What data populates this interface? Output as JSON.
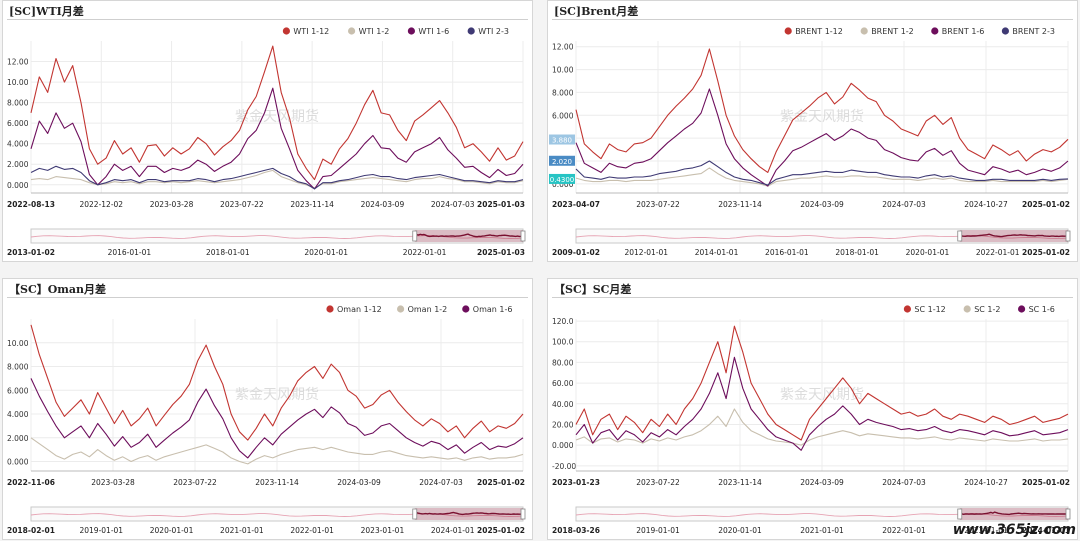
{
  "watermark_site": "www.365jz.com",
  "chart_data": [
    {
      "type": "line",
      "title": "[SC]WTI月差",
      "overlay": "紫金天风期货",
      "ylim": [
        -0.8,
        14
      ],
      "yticks": [
        "0.000",
        "2.000",
        "4.000",
        "6.000",
        "8.000",
        "10.00",
        "12.00"
      ],
      "x_start": "2022-08-13",
      "x_end": "2025-01-03",
      "xticks": [
        "2022-08-13",
        "2022-12-02",
        "2023-03-28",
        "2023-07-22",
        "2023-11-14",
        "2024-03-09",
        "2024-07-03",
        "2025-01-03"
      ],
      "navigator_ticks": [
        "2013-01-02",
        "2016-01-01",
        "2018-01-01",
        "2020-01-01",
        "2022-01-01",
        "2025-01-03"
      ],
      "series": [
        {
          "name": "WTI 1-12",
          "color": "#c23531",
          "values": [
            7.0,
            10.5,
            9.0,
            12.3,
            10.0,
            11.6,
            8.0,
            3.5,
            2.0,
            2.6,
            4.3,
            3.0,
            3.6,
            2.2,
            3.8,
            3.9,
            2.8,
            3.6,
            3.0,
            3.5,
            4.6,
            4.0,
            2.9,
            3.7,
            4.3,
            5.3,
            7.3,
            8.6,
            11.0,
            13.5,
            9.0,
            6.5,
            3.0,
            1.6,
            0.5,
            2.5,
            2.0,
            3.5,
            4.5,
            6.0,
            7.8,
            9.2,
            7.0,
            6.8,
            5.3,
            4.3,
            6.2,
            6.8,
            7.5,
            8.2,
            7.0,
            5.6,
            3.6,
            4.0,
            3.2,
            2.3,
            3.6,
            2.4,
            2.8,
            4.2
          ]
        },
        {
          "name": "WTI 1-2",
          "color": "#c8bfae",
          "values": [
            0.5,
            0.6,
            0.5,
            0.8,
            0.7,
            0.6,
            0.5,
            0.2,
            0.0,
            0.1,
            0.3,
            0.2,
            0.3,
            0.1,
            0.3,
            0.3,
            0.2,
            0.3,
            0.2,
            0.3,
            0.4,
            0.3,
            0.2,
            0.3,
            0.4,
            0.5,
            0.7,
            0.9,
            1.2,
            1.4,
            0.8,
            0.5,
            0.2,
            0.0,
            -0.3,
            0.1,
            0.1,
            0.3,
            0.4,
            0.5,
            0.6,
            0.7,
            0.6,
            0.5,
            0.4,
            0.3,
            0.5,
            0.6,
            0.6,
            0.8,
            0.6,
            0.5,
            0.3,
            0.3,
            0.2,
            0.1,
            0.3,
            0.2,
            0.2,
            0.4
          ]
        },
        {
          "name": "WTI 1-6",
          "color": "#6d0e5c",
          "values": [
            3.5,
            6.2,
            5.0,
            7.0,
            5.5,
            6.0,
            4.2,
            1.0,
            0.0,
            0.8,
            2.0,
            1.4,
            1.8,
            0.8,
            1.8,
            1.8,
            1.2,
            1.6,
            1.4,
            1.7,
            2.4,
            2.0,
            1.3,
            1.8,
            2.2,
            3.0,
            4.5,
            5.3,
            7.0,
            9.4,
            5.5,
            3.5,
            1.4,
            0.4,
            -0.4,
            0.8,
            0.9,
            1.6,
            2.3,
            3.0,
            4.0,
            4.8,
            3.6,
            3.5,
            2.6,
            2.2,
            3.2,
            3.6,
            4.0,
            4.6,
            3.4,
            2.6,
            1.7,
            1.8,
            1.2,
            0.7,
            1.5,
            0.9,
            1.1,
            2.0
          ]
        },
        {
          "name": "WTI 2-3",
          "color": "#3f3a74",
          "values": [
            1.2,
            1.6,
            1.4,
            1.8,
            1.5,
            1.6,
            1.2,
            0.4,
            0.0,
            0.2,
            0.5,
            0.4,
            0.5,
            0.2,
            0.5,
            0.5,
            0.3,
            0.4,
            0.4,
            0.4,
            0.6,
            0.5,
            0.3,
            0.5,
            0.6,
            0.8,
            1.0,
            1.2,
            1.4,
            1.6,
            1.1,
            0.8,
            0.3,
            0.1,
            -0.4,
            0.2,
            0.2,
            0.4,
            0.5,
            0.7,
            0.9,
            1.0,
            0.8,
            0.8,
            0.6,
            0.5,
            0.7,
            0.8,
            0.9,
            1.0,
            0.8,
            0.6,
            0.4,
            0.4,
            0.3,
            0.2,
            0.4,
            0.3,
            0.3,
            0.5
          ]
        }
      ]
    },
    {
      "type": "line",
      "title": "[SC]Brent月差",
      "overlay": "紫金天风期货",
      "ylim": [
        -0.8,
        12.5
      ],
      "yticks": [
        "0.000",
        "2.000",
        "4.000",
        "6.000",
        "8.000",
        "10.00",
        "12.00"
      ],
      "x_start": "2023-04-07",
      "x_end": "2025-01-02",
      "xticks": [
        "2023-04-07",
        "2023-07-22",
        "2023-11-14",
        "2024-03-09",
        "2024-07-03",
        "2024-10-27",
        "2025-01-02"
      ],
      "navigator_ticks": [
        "2009-01-02",
        "2012-01-01",
        "2014-01-01",
        "2016-01-01",
        "2018-01-01",
        "2020-01-01",
        "2022-01-01",
        "2025-01-02"
      ],
      "end_labels": [
        {
          "text": "3.880",
          "value": 3.88,
          "color": "#9dc6e3"
        },
        {
          "text": "2.020",
          "value": 2.02,
          "color": "#4a8bc4"
        },
        {
          "text": "0.4300",
          "value": 0.43,
          "color": "#27c4c4"
        }
      ],
      "series": [
        {
          "name": "BRENT 1-12",
          "color": "#c23531",
          "values": [
            6.5,
            3.5,
            2.8,
            2.2,
            3.5,
            3.0,
            2.8,
            3.5,
            3.6,
            4.0,
            5.0,
            6.0,
            6.8,
            7.5,
            8.3,
            9.5,
            11.8,
            9.0,
            6.0,
            4.2,
            3.0,
            2.2,
            1.5,
            1.0,
            2.8,
            4.2,
            5.6,
            6.2,
            6.8,
            7.5,
            8.0,
            7.0,
            7.6,
            8.8,
            8.2,
            7.5,
            7.2,
            6.0,
            5.5,
            4.8,
            4.5,
            4.2,
            5.5,
            6.0,
            5.2,
            5.8,
            4.0,
            3.0,
            2.6,
            2.2,
            3.4,
            3.0,
            2.5,
            2.9,
            2.0,
            2.6,
            3.0,
            2.8,
            3.2,
            3.9
          ]
        },
        {
          "name": "BRENT 1-2",
          "color": "#c8bfae",
          "values": [
            0.5,
            0.3,
            0.2,
            0.2,
            0.3,
            0.3,
            0.2,
            0.3,
            0.3,
            0.3,
            0.4,
            0.5,
            0.6,
            0.7,
            0.8,
            0.9,
            1.4,
            0.9,
            0.5,
            0.3,
            0.2,
            0.1,
            0.0,
            -0.2,
            0.2,
            0.3,
            0.4,
            0.5,
            0.5,
            0.6,
            0.7,
            0.6,
            0.6,
            0.7,
            0.7,
            0.6,
            0.6,
            0.5,
            0.4,
            0.4,
            0.4,
            0.3,
            0.4,
            0.5,
            0.4,
            0.5,
            0.3,
            0.2,
            0.2,
            0.2,
            0.3,
            0.2,
            0.2,
            0.2,
            0.2,
            0.2,
            0.3,
            0.2,
            0.3,
            0.4
          ]
        },
        {
          "name": "BRENT 1-6",
          "color": "#6d0e5c",
          "values": [
            3.6,
            1.8,
            1.4,
            1.0,
            1.8,
            1.5,
            1.4,
            1.8,
            1.9,
            2.2,
            2.9,
            3.6,
            4.2,
            4.8,
            5.3,
            6.2,
            8.3,
            6.0,
            3.5,
            2.2,
            1.4,
            0.8,
            0.3,
            -0.2,
            1.2,
            2.0,
            2.9,
            3.2,
            3.6,
            4.0,
            4.4,
            3.8,
            4.2,
            4.8,
            4.5,
            4.0,
            3.8,
            3.0,
            2.7,
            2.3,
            2.1,
            2.0,
            2.8,
            3.1,
            2.5,
            2.9,
            1.8,
            1.2,
            1.0,
            0.8,
            1.5,
            1.3,
            1.0,
            1.2,
            0.8,
            1.0,
            1.3,
            1.1,
            1.4,
            2.0
          ]
        },
        {
          "name": "BRENT 2-3",
          "color": "#3f3a74",
          "values": [
            1.3,
            0.6,
            0.5,
            0.4,
            0.6,
            0.5,
            0.5,
            0.6,
            0.6,
            0.7,
            0.9,
            1.0,
            1.1,
            1.3,
            1.4,
            1.6,
            2.0,
            1.5,
            1.0,
            0.6,
            0.4,
            0.3,
            0.1,
            -0.1,
            0.4,
            0.6,
            0.8,
            0.8,
            0.9,
            1.0,
            1.1,
            1.0,
            1.0,
            1.2,
            1.1,
            1.0,
            1.0,
            0.8,
            0.7,
            0.6,
            0.6,
            0.5,
            0.7,
            0.8,
            0.6,
            0.7,
            0.5,
            0.4,
            0.3,
            0.3,
            0.4,
            0.4,
            0.3,
            0.3,
            0.3,
            0.3,
            0.4,
            0.3,
            0.4,
            0.43
          ]
        }
      ]
    },
    {
      "type": "line",
      "title": "【SC】Oman月差",
      "overlay": "紫金天风期货",
      "ylim": [
        -0.8,
        12
      ],
      "yticks": [
        "0.000",
        "2.000",
        "4.000",
        "6.000",
        "8.000",
        "10.00"
      ],
      "x_start": "2022-11-06",
      "x_end": "2025-01-02",
      "xticks": [
        "2022-11-06",
        "2023-03-28",
        "2023-07-22",
        "2023-11-14",
        "2024-03-09",
        "2024-07-03",
        "2025-01-02"
      ],
      "navigator_ticks": [
        "2018-02-01",
        "2019-01-01",
        "2020-01-01",
        "2021-01-01",
        "2022-01-01",
        "2023-01-01",
        "2024-01-01",
        "2025-01-02"
      ],
      "series": [
        {
          "name": "Oman 1-12",
          "color": "#c23531",
          "values": [
            11.5,
            9.0,
            7.0,
            5.0,
            3.8,
            4.5,
            5.2,
            4.0,
            5.8,
            4.5,
            3.2,
            4.3,
            3.0,
            3.6,
            4.5,
            3.0,
            3.9,
            4.8,
            5.5,
            6.5,
            8.5,
            9.8,
            8.0,
            6.5,
            4.0,
            2.5,
            1.8,
            2.8,
            4.0,
            3.0,
            4.5,
            5.5,
            6.8,
            7.5,
            8.0,
            7.0,
            8.2,
            7.5,
            6.0,
            5.5,
            4.5,
            4.8,
            5.6,
            6.0,
            5.0,
            4.2,
            3.5,
            3.0,
            3.6,
            3.2,
            2.5,
            3.0,
            2.0,
            2.8,
            3.4,
            2.5,
            3.0,
            2.8,
            3.2,
            4.0
          ]
        },
        {
          "name": "Oman 1-2",
          "color": "#c8bfae",
          "values": [
            2.0,
            1.5,
            1.0,
            0.5,
            0.2,
            0.6,
            0.8,
            0.4,
            1.0,
            0.5,
            0.1,
            0.4,
            0.0,
            0.3,
            0.5,
            0.1,
            0.4,
            0.6,
            0.8,
            1.0,
            1.2,
            1.4,
            1.1,
            0.8,
            0.3,
            0.0,
            -0.2,
            0.2,
            0.5,
            0.3,
            0.6,
            0.8,
            1.0,
            1.1,
            1.2,
            1.0,
            1.2,
            1.0,
            0.8,
            0.7,
            0.6,
            0.6,
            0.8,
            0.9,
            0.7,
            0.5,
            0.4,
            0.3,
            0.4,
            0.3,
            0.2,
            0.3,
            0.1,
            0.3,
            0.4,
            0.2,
            0.3,
            0.3,
            0.4,
            0.6
          ]
        },
        {
          "name": "Oman 1-6",
          "color": "#6d0e5c",
          "values": [
            7.0,
            5.5,
            4.2,
            3.0,
            2.0,
            2.5,
            3.0,
            2.0,
            3.2,
            2.3,
            1.3,
            2.1,
            1.2,
            1.6,
            2.3,
            1.2,
            1.8,
            2.4,
            2.9,
            3.5,
            5.0,
            6.1,
            4.7,
            3.6,
            2.0,
            0.9,
            0.3,
            1.2,
            2.0,
            1.4,
            2.3,
            2.9,
            3.5,
            4.0,
            4.4,
            3.7,
            4.6,
            4.1,
            3.2,
            2.9,
            2.2,
            2.4,
            3.0,
            3.2,
            2.6,
            2.0,
            1.6,
            1.3,
            1.7,
            1.5,
            1.0,
            1.4,
            0.7,
            1.2,
            1.6,
            1.0,
            1.3,
            1.2,
            1.5,
            2.0
          ]
        }
      ]
    },
    {
      "type": "line",
      "title": "【SC】SC月差",
      "overlay": "紫金天风期货",
      "ylim": [
        -25,
        122
      ],
      "yticks": [
        "-20.00",
        "0.000",
        "20.00",
        "40.00",
        "60.00",
        "80.00",
        "100.0",
        "120.0"
      ],
      "x_start": "2023-01-23",
      "x_end": "2025-01-02",
      "xticks": [
        "2023-01-23",
        "2023-07-22",
        "2023-11-14",
        "2024-03-09",
        "2024-07-03",
        "2024-10-27",
        "2025-01-02"
      ],
      "navigator_ticks": [
        "2018-03-26",
        "2019-01-01",
        "2020-01-01",
        "2021-01-01",
        "2022-01-01",
        "2023-01-01",
        "2024-01-01"
      ],
      "series": [
        {
          "name": "SC 1-12",
          "color": "#c23531",
          "values": [
            20,
            35,
            10,
            25,
            30,
            15,
            28,
            22,
            12,
            25,
            18,
            30,
            20,
            35,
            45,
            60,
            80,
            100,
            70,
            115,
            90,
            60,
            45,
            30,
            20,
            15,
            10,
            5,
            25,
            35,
            45,
            55,
            65,
            55,
            40,
            50,
            45,
            40,
            35,
            30,
            32,
            28,
            30,
            35,
            28,
            25,
            30,
            28,
            25,
            22,
            28,
            25,
            20,
            22,
            25,
            28,
            22,
            24,
            26,
            30
          ]
        },
        {
          "name": "SC 1-2",
          "color": "#c8bfae",
          "values": [
            5,
            8,
            2,
            6,
            7,
            3,
            6,
            5,
            2,
            6,
            4,
            7,
            5,
            8,
            10,
            14,
            20,
            28,
            18,
            35,
            22,
            14,
            10,
            6,
            4,
            3,
            2,
            0,
            5,
            8,
            10,
            12,
            14,
            12,
            9,
            11,
            10,
            9,
            8,
            7,
            7,
            6,
            7,
            8,
            6,
            5,
            7,
            6,
            5,
            4,
            6,
            5,
            4,
            4,
            5,
            6,
            4,
            5,
            5,
            6
          ]
        },
        {
          "name": "SC 1-6",
          "color": "#6d0e5c",
          "values": [
            10,
            20,
            2,
            12,
            15,
            5,
            14,
            10,
            3,
            12,
            8,
            15,
            10,
            18,
            25,
            35,
            50,
            70,
            45,
            85,
            55,
            35,
            25,
            15,
            8,
            5,
            2,
            -5,
            10,
            18,
            25,
            30,
            38,
            30,
            20,
            25,
            22,
            20,
            18,
            15,
            16,
            14,
            15,
            18,
            14,
            12,
            15,
            14,
            12,
            10,
            14,
            12,
            9,
            10,
            12,
            14,
            10,
            11,
            12,
            15
          ]
        }
      ]
    }
  ]
}
